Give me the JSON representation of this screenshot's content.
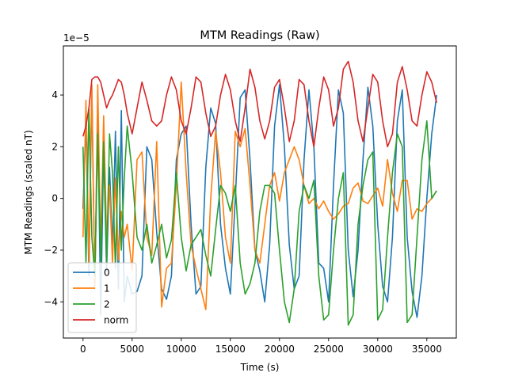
{
  "chart_data": {
    "type": "line",
    "title": "MTM Readings (Raw)",
    "xlabel": "Time (s)",
    "ylabel": "MTM Readings (scaled nT)",
    "y_offset_label": "1e−5",
    "xlim": [
      -2000,
      38000
    ],
    "ylim": [
      -5.4,
      5.9
    ],
    "y_scale": 1e-05,
    "xticks": [
      0,
      5000,
      10000,
      15000,
      20000,
      25000,
      30000,
      35000
    ],
    "xtick_labels": [
      "0",
      "5000",
      "10000",
      "15000",
      "20000",
      "25000",
      "30000",
      "35000"
    ],
    "yticks": [
      -4,
      -2,
      0,
      2,
      4
    ],
    "ytick_labels": [
      "−4",
      "−2",
      "0",
      "2",
      "4"
    ],
    "grid": false,
    "legend_position": "lower-left",
    "series": [
      {
        "name": "0",
        "color": "#1f77b4",
        "x": [
          0,
          300,
          600,
          900,
          1200,
          1500,
          1800,
          2100,
          2400,
          2700,
          3000,
          3300,
          3600,
          3900,
          4200,
          4500,
          5000,
          5500,
          6000,
          6500,
          7000,
          7500,
          8000,
          8500,
          9000,
          9500,
          10000,
          10500,
          11000,
          11500,
          12000,
          12500,
          13000,
          13500,
          14000,
          14500,
          15000,
          15500,
          16000,
          16500,
          17000,
          17500,
          18000,
          18500,
          19000,
          19500,
          20000,
          20500,
          21000,
          21500,
          22000,
          22500,
          23000,
          23500,
          24000,
          24500,
          25000,
          25500,
          26000,
          26500,
          27000,
          27500,
          28000,
          28500,
          29000,
          29500,
          30000,
          30500,
          31000,
          31500,
          32000,
          32500,
          33000,
          33500,
          34000,
          34500,
          35000,
          35500,
          36000
        ],
        "y": [
          -0.4,
          3.0,
          -3.0,
          4.2,
          -3.5,
          3.4,
          -4.5,
          2.0,
          -2.8,
          1.2,
          -2.0,
          2.6,
          -3.5,
          3.4,
          -4.0,
          -3.0,
          -3.7,
          -3.6,
          -3.0,
          2.0,
          1.5,
          -1.3,
          -3.5,
          -3.9,
          -3.0,
          1.5,
          2.5,
          2.8,
          -1.0,
          -3.7,
          -3.4,
          1.2,
          3.5,
          2.9,
          -1.0,
          -2.7,
          -3.7,
          0.0,
          3.9,
          4.2,
          1.5,
          -2.0,
          -2.8,
          -4.0,
          -1.8,
          2.8,
          4.4,
          2.0,
          -1.8,
          -3.5,
          -3.0,
          1.5,
          4.2,
          2.0,
          -2.5,
          -2.7,
          -4.0,
          0.5,
          4.2,
          3.3,
          -2.0,
          -3.8,
          -2.0,
          1.5,
          4.3,
          2.8,
          -1.0,
          -3.4,
          -4.0,
          -1.5,
          3.0,
          4.2,
          -1.5,
          -3.6,
          -4.6,
          -3.0,
          0.0,
          2.5,
          4.0
        ]
      },
      {
        "name": "1",
        "color": "#ff7f0e",
        "x": [
          0,
          300,
          600,
          900,
          1200,
          1500,
          1800,
          2100,
          2400,
          2700,
          3000,
          3300,
          3600,
          3900,
          4200,
          4500,
          5000,
          5500,
          6000,
          6500,
          7000,
          7500,
          8000,
          8500,
          9000,
          9500,
          10000,
          10500,
          11000,
          11500,
          12000,
          12500,
          13000,
          13500,
          14000,
          14500,
          15000,
          15500,
          16000,
          16500,
          17000,
          17500,
          18000,
          18500,
          19000,
          19500,
          20000,
          20500,
          21000,
          21500,
          22000,
          22500,
          23000,
          23500,
          24000,
          24500,
          25000,
          25500,
          26000,
          26500,
          27000,
          27500,
          28000,
          28500,
          29000,
          29500,
          30000,
          30500,
          31000,
          31500,
          32000,
          32500,
          33000,
          33500,
          34000,
          34500,
          35000,
          35500,
          36000
        ],
        "y": [
          -1.5,
          3.8,
          -2.5,
          4.4,
          -3.5,
          4.4,
          -2.0,
          3.2,
          -1.5,
          0.5,
          -2.5,
          0.8,
          -2.4,
          -0.5,
          -1.5,
          -1.0,
          -2.8,
          1.5,
          1.8,
          -1.5,
          -2.2,
          2.2,
          -4.2,
          -2.7,
          -2.5,
          0.5,
          4.5,
          1.0,
          -1.8,
          -2.7,
          -3.5,
          -4.3,
          0.0,
          2.6,
          1.0,
          -1.5,
          -2.5,
          2.6,
          2.0,
          2.7,
          0.5,
          -2.0,
          -2.5,
          -1.0,
          0.5,
          1.0,
          -0.1,
          1.0,
          1.5,
          2.0,
          1.5,
          0.5,
          -0.2,
          0.0,
          -0.4,
          -0.1,
          -0.5,
          -0.8,
          -0.6,
          -0.3,
          -0.2,
          0.4,
          0.6,
          -0.1,
          -0.2,
          0.1,
          0.4,
          -0.3,
          1.5,
          0.2,
          -0.5,
          0.7,
          0.7,
          -0.8,
          -0.4,
          -0.5,
          -0.2,
          0.0,
          0.3
        ]
      },
      {
        "name": "2",
        "color": "#2ca02c",
        "x": [
          0,
          300,
          600,
          900,
          1200,
          1500,
          1800,
          2100,
          2400,
          2700,
          3000,
          3300,
          3600,
          3900,
          4200,
          4500,
          5000,
          5500,
          6000,
          6500,
          7000,
          7500,
          8000,
          8500,
          9000,
          9500,
          10000,
          10500,
          11000,
          11500,
          12000,
          12500,
          13000,
          13500,
          14000,
          14500,
          15000,
          15500,
          16000,
          16500,
          17000,
          17500,
          18000,
          18500,
          19000,
          19500,
          20000,
          20500,
          21000,
          21500,
          22000,
          22500,
          23000,
          23500,
          24000,
          24500,
          25000,
          25500,
          26000,
          26500,
          27000,
          27500,
          28000,
          28500,
          29000,
          29500,
          30000,
          30500,
          31000,
          31500,
          32000,
          32500,
          33000,
          33500,
          34000,
          34500,
          35000,
          35500,
          36000
        ],
        "y": [
          2.0,
          -2.5,
          3.5,
          -1.5,
          -3.0,
          2.5,
          -2.5,
          2.2,
          -2.5,
          2.5,
          1.0,
          -2.7,
          2.0,
          -2.0,
          0.8,
          2.8,
          1.0,
          -1.5,
          -2.0,
          -1.0,
          -2.5,
          -1.8,
          -1.0,
          -2.3,
          -1.6,
          1.0,
          -1.5,
          -2.8,
          -1.8,
          -1.5,
          -1.2,
          -2.2,
          -3.0,
          -1.2,
          0.5,
          0.2,
          -0.5,
          0.5,
          -2.5,
          -3.7,
          -3.3,
          -2.5,
          -0.5,
          0.5,
          0.5,
          0.2,
          -2.0,
          -4.0,
          -4.8,
          -3.5,
          -0.5,
          0.5,
          0.0,
          0.7,
          -3.0,
          -4.7,
          -4.5,
          -2.0,
          0.0,
          1.0,
          -4.9,
          -4.5,
          -1.0,
          0.5,
          1.5,
          1.8,
          -4.7,
          -4.3,
          -1.5,
          1.0,
          2.5,
          2.0,
          -4.8,
          -4.5,
          -1.5,
          1.5,
          3.0,
          0.0,
          0.3
        ]
      },
      {
        "name": "norm",
        "color": "#d62728",
        "x": [
          0,
          300,
          600,
          900,
          1200,
          1500,
          1800,
          2100,
          2400,
          2700,
          3000,
          3300,
          3600,
          3900,
          4200,
          4500,
          5000,
          5500,
          6000,
          6500,
          7000,
          7500,
          8000,
          8500,
          9000,
          9500,
          10000,
          10500,
          11000,
          11500,
          12000,
          12500,
          13000,
          13500,
          14000,
          14500,
          15000,
          15500,
          16000,
          16500,
          17000,
          17500,
          18000,
          18500,
          19000,
          19500,
          20000,
          20500,
          21000,
          21500,
          22000,
          22500,
          23000,
          23500,
          24000,
          24500,
          25000,
          25500,
          26000,
          26500,
          27000,
          27500,
          28000,
          28500,
          29000,
          29500,
          30000,
          30500,
          31000,
          31500,
          32000,
          32500,
          33000,
          33500,
          34000,
          34500,
          35000,
          35500,
          36000
        ],
        "y": [
          2.4,
          2.8,
          3.5,
          4.6,
          4.7,
          4.7,
          4.5,
          4.0,
          3.5,
          3.8,
          4.0,
          4.3,
          4.6,
          4.5,
          4.0,
          3.3,
          2.5,
          3.5,
          4.5,
          3.8,
          3.0,
          2.8,
          3.0,
          4.0,
          4.7,
          4.2,
          3.0,
          2.5,
          3.5,
          4.7,
          4.5,
          3.3,
          2.4,
          2.8,
          4.0,
          4.8,
          4.2,
          3.0,
          2.2,
          3.5,
          5.0,
          4.3,
          3.0,
          2.3,
          3.0,
          4.3,
          4.6,
          3.5,
          2.2,
          3.0,
          4.6,
          4.4,
          3.0,
          2.0,
          3.5,
          4.7,
          4.2,
          2.8,
          3.5,
          5.0,
          5.3,
          4.5,
          3.0,
          2.2,
          3.5,
          4.8,
          4.5,
          3.0,
          2.0,
          2.5,
          4.5,
          5.1,
          4.2,
          3.0,
          2.8,
          4.0,
          4.9,
          4.5,
          3.7
        ]
      }
    ]
  }
}
